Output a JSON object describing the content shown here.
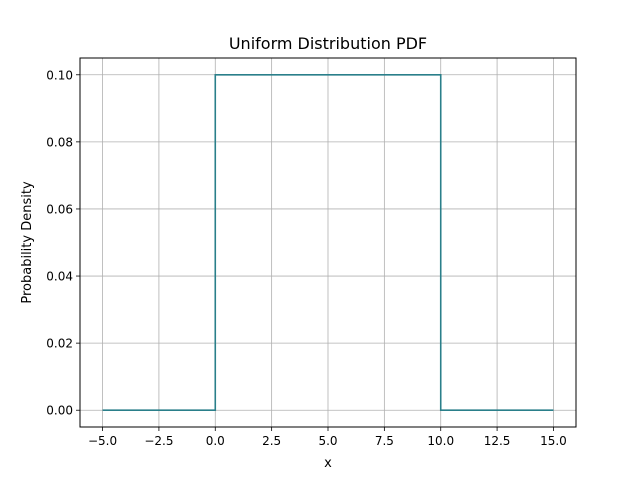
{
  "chart_data": {
    "type": "line",
    "title": "Uniform Distribution PDF",
    "xlabel": "x",
    "ylabel": "Probability Density",
    "xlim": [
      -6.0,
      16.0
    ],
    "ylim": [
      -0.005,
      0.105
    ],
    "grid": true,
    "x_ticks": [
      -5.0,
      -2.5,
      0.0,
      2.5,
      5.0,
      7.5,
      10.0,
      12.5,
      15.0
    ],
    "x_tick_labels": [
      "−5.0",
      "−2.5",
      "0.0",
      "2.5",
      "5.0",
      "7.5",
      "10.0",
      "12.5",
      "15.0"
    ],
    "y_ticks": [
      0.0,
      0.02,
      0.04,
      0.06,
      0.08,
      0.1
    ],
    "y_tick_labels": [
      "0.00",
      "0.02",
      "0.04",
      "0.06",
      "0.08",
      "0.10"
    ],
    "line_color": "#2a7f8a",
    "series": [
      {
        "x": [
          -5,
          0,
          0,
          10,
          10,
          15
        ],
        "y": [
          0,
          0,
          0.1,
          0.1,
          0,
          0
        ]
      }
    ]
  }
}
